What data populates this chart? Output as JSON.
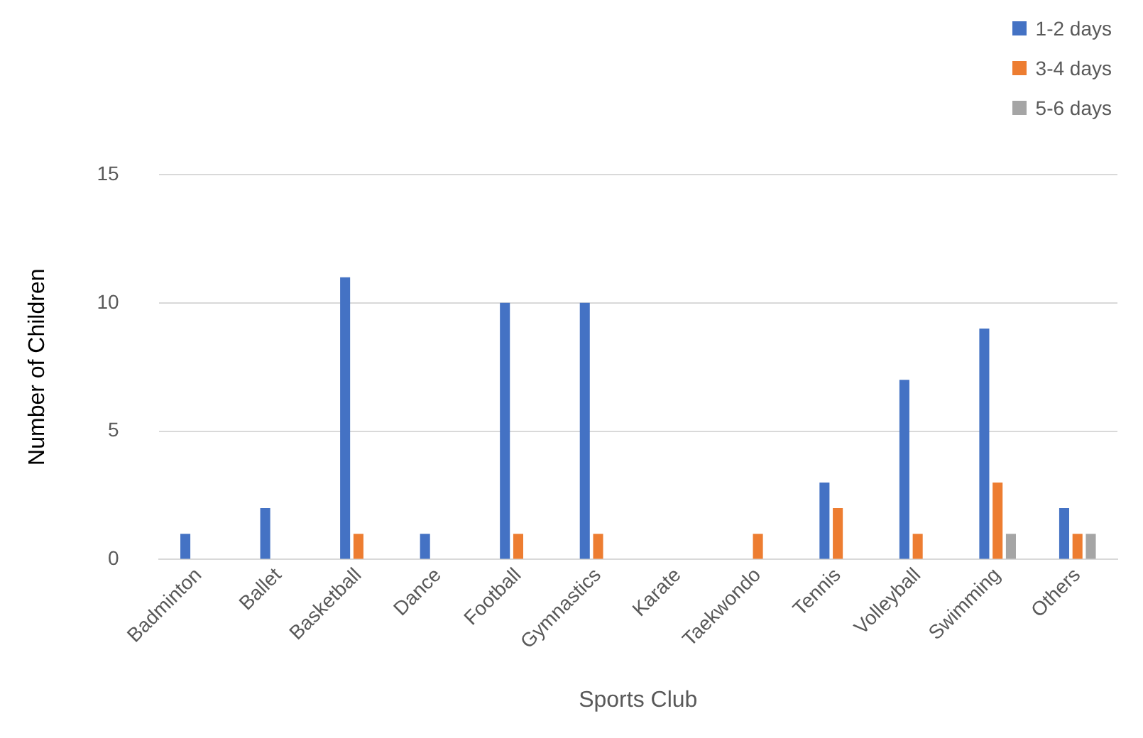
{
  "chart_data": {
    "type": "bar",
    "xlabel": "Sports Club",
    "ylabel": "Number of Children",
    "categories": [
      "Badminton",
      "Ballet",
      "Basketball",
      "Dance",
      "Football",
      "Gymnastics",
      "Karate",
      "Taekwondo",
      "Tennis",
      "Volleyball",
      "Swimming",
      "Others"
    ],
    "series": [
      {
        "name": "1-2 days",
        "color": "#4472c4",
        "values": [
          1,
          2,
          11,
          1,
          10,
          10,
          0,
          0,
          3,
          7,
          9,
          2
        ]
      },
      {
        "name": "3-4 days",
        "color": "#ed7d31",
        "values": [
          0,
          0,
          1,
          0,
          1,
          1,
          0,
          1,
          2,
          1,
          3,
          1
        ]
      },
      {
        "name": "5-6 days",
        "color": "#a5a5a5",
        "values": [
          0,
          0,
          0,
          0,
          0,
          0,
          0,
          0,
          0,
          0,
          1,
          1
        ]
      }
    ],
    "ylim": [
      0,
      15
    ],
    "yticks": [
      0,
      5,
      10,
      15
    ],
    "grid": "y",
    "legend": "top right"
  }
}
